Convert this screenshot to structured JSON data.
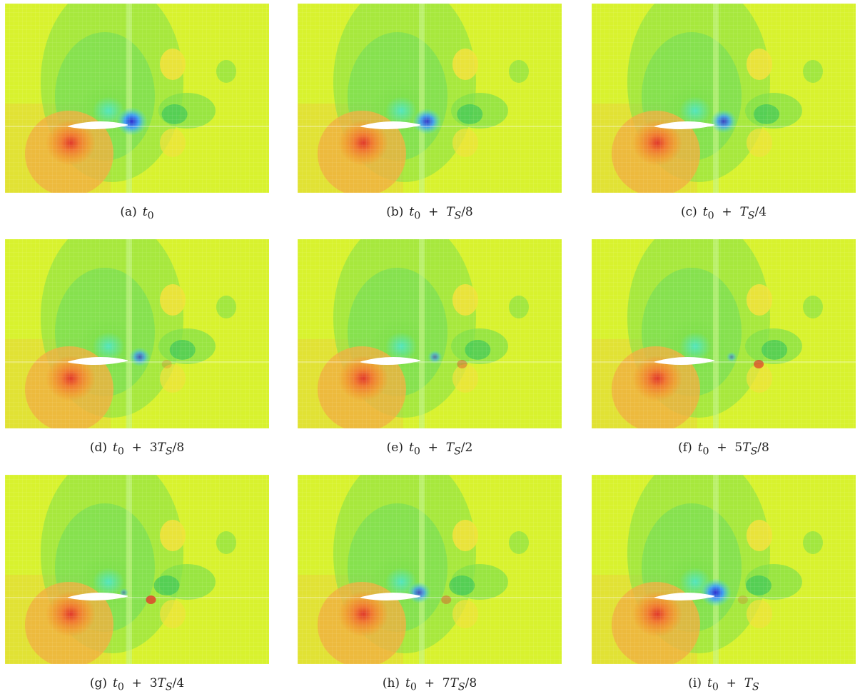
{
  "figure": {
    "panels": [
      {
        "label": "(a)",
        "time": "t0",
        "vortex_strength": 1.0,
        "vortex_x": 0.48,
        "red_tip": 0.0
      },
      {
        "label": "(b)",
        "time": "t0 + TS/8",
        "vortex_strength": 0.9,
        "vortex_x": 0.49,
        "red_tip": 0.0
      },
      {
        "label": "(c)",
        "time": "t0 + TS/4",
        "vortex_strength": 0.8,
        "vortex_x": 0.5,
        "red_tip": 0.0
      },
      {
        "label": "(d)",
        "time": "t0 + 3TS/8",
        "vortex_strength": 0.6,
        "vortex_x": 0.51,
        "red_tip": 0.2
      },
      {
        "label": "(e)",
        "time": "t0 + TS/2",
        "vortex_strength": 0.35,
        "vortex_x": 0.52,
        "red_tip": 0.4
      },
      {
        "label": "(f)",
        "time": "t0 + 5TS/8",
        "vortex_strength": 0.2,
        "vortex_x": 0.53,
        "red_tip": 0.7
      },
      {
        "label": "(g)",
        "time": "t0 + 3TS/4",
        "vortex_strength": 0.15,
        "vortex_x": 0.45,
        "red_tip": 0.8
      },
      {
        "label": "(h)",
        "time": "t0 + 7TS/8",
        "vortex_strength": 0.7,
        "vortex_x": 0.46,
        "red_tip": 0.4
      },
      {
        "label": "(i)",
        "time": "t0 + TS",
        "vortex_strength": 1.0,
        "vortex_x": 0.47,
        "red_tip": 0.2
      }
    ],
    "colors": {
      "background_yellow": "#d8f22e",
      "green": "#7fe04a",
      "cyan": "#4de6c8",
      "blue": "#3030d0",
      "orange": "#f0a030",
      "red": "#e03a2a"
    }
  }
}
